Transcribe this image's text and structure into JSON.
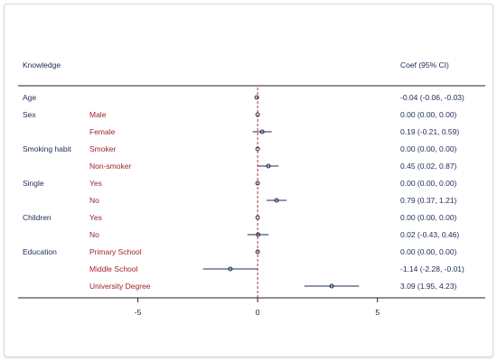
{
  "chart_data": {
    "type": "forest",
    "header_label": "Knowledge",
    "coef_header": "Coef (95% CI)",
    "xlim": [
      -10,
      9.5
    ],
    "xticks": [
      -5,
      0,
      5
    ],
    "tick_labels": [
      "-5",
      "0",
      "5"
    ],
    "reference_line": 0,
    "grid": false,
    "colors": {
      "variable_label": "#1c2c54",
      "category_label": "#a02228",
      "marker": "#1c2c54",
      "ci_line": "#1c2c54",
      "reference_line": "#a02228"
    },
    "rows": [
      {
        "variable": "Age",
        "category": "",
        "coef": -0.04,
        "lo": -0.06,
        "hi": -0.03,
        "text": "-0.04 (-0.06, -0.03)"
      },
      {
        "variable": "Sex",
        "category": "Male",
        "coef": 0.0,
        "lo": 0.0,
        "hi": 0.0,
        "text": "0.00 (0.00, 0.00)"
      },
      {
        "variable": "",
        "category": "Female",
        "coef": 0.19,
        "lo": -0.21,
        "hi": 0.59,
        "text": "0.19 (-0.21, 0.59)"
      },
      {
        "variable": "Smoking habit",
        "category": "Smoker",
        "coef": 0.0,
        "lo": 0.0,
        "hi": 0.0,
        "text": "0.00 (0.00, 0.00)"
      },
      {
        "variable": "",
        "category": "Non-smoker",
        "coef": 0.45,
        "lo": 0.02,
        "hi": 0.87,
        "text": "0.45 (0.02, 0.87)"
      },
      {
        "variable": "Single",
        "category": "Yes",
        "coef": 0.0,
        "lo": 0.0,
        "hi": 0.0,
        "text": "0.00 (0.00, 0.00)"
      },
      {
        "variable": "",
        "category": "No",
        "coef": 0.79,
        "lo": 0.37,
        "hi": 1.21,
        "text": "0.79 (0.37, 1.21)"
      },
      {
        "variable": "Children",
        "category": "Yes",
        "coef": 0.0,
        "lo": 0.0,
        "hi": 0.0,
        "text": "0.00 (0.00, 0.00)"
      },
      {
        "variable": "",
        "category": "No",
        "coef": 0.02,
        "lo": -0.43,
        "hi": 0.46,
        "text": "0.02 (-0.43, 0.46)"
      },
      {
        "variable": "Education",
        "category": "Primary School",
        "coef": 0.0,
        "lo": 0.0,
        "hi": 0.0,
        "text": "0.00 (0.00, 0.00)"
      },
      {
        "variable": "",
        "category": "Middle School",
        "coef": -1.14,
        "lo": -2.28,
        "hi": -0.01,
        "text": "-1.14 (-2.28, -0.01)"
      },
      {
        "variable": "",
        "category": "University Degree",
        "coef": 3.09,
        "lo": 1.95,
        "hi": 4.23,
        "text": "3.09 (1.95, 4.23)"
      }
    ]
  }
}
